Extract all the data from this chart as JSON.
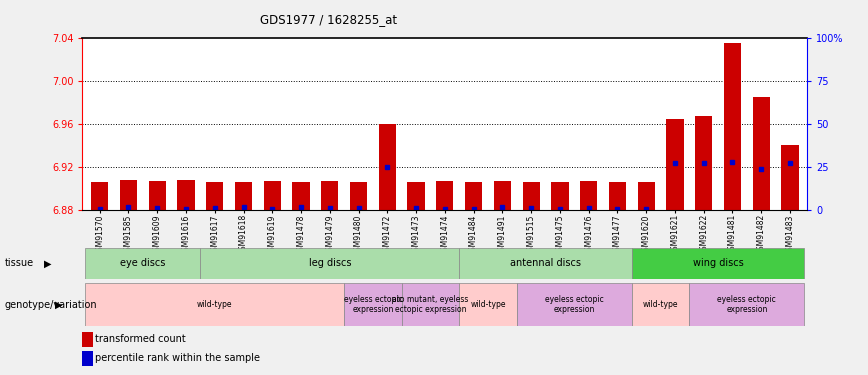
{
  "title": "GDS1977 / 1628255_at",
  "samples": [
    "GSM91570",
    "GSM91585",
    "GSM91609",
    "GSM91616",
    "GSM91617",
    "GSM91618",
    "GSM91619",
    "GSM91478",
    "GSM91479",
    "GSM91480",
    "GSM91472",
    "GSM91473",
    "GSM91474",
    "GSM91484",
    "GSM91491",
    "GSM91515",
    "GSM91475",
    "GSM91476",
    "GSM91477",
    "GSM91620",
    "GSM91621",
    "GSM91622",
    "GSM91481",
    "GSM91482",
    "GSM91483"
  ],
  "red_values": [
    6.906,
    6.908,
    6.907,
    6.908,
    6.906,
    6.906,
    6.907,
    6.906,
    6.907,
    6.906,
    6.96,
    6.906,
    6.907,
    6.906,
    6.907,
    6.906,
    6.906,
    6.907,
    6.906,
    6.906,
    6.964,
    6.967,
    7.035,
    6.985,
    6.94
  ],
  "blue_values": [
    0.5,
    1.5,
    1.0,
    0.5,
    1.0,
    1.5,
    0.5,
    1.5,
    1.0,
    1.0,
    25.0,
    1.0,
    0.5,
    0.5,
    1.5,
    1.0,
    0.5,
    1.0,
    0.5,
    0.5,
    27.0,
    27.0,
    28.0,
    24.0,
    27.0
  ],
  "ymin": 6.88,
  "ymax": 7.04,
  "yticks": [
    6.88,
    6.92,
    6.96,
    7.0,
    7.04
  ],
  "right_yticks": [
    0,
    25,
    50,
    75,
    100
  ],
  "right_yticklabels": [
    "0",
    "25",
    "50",
    "75",
    "100%"
  ],
  "tissue_boundaries": [
    {
      "label": "eye discs",
      "start": 0,
      "end": 4,
      "color": "#aaddaa"
    },
    {
      "label": "leg discs",
      "start": 4,
      "end": 13,
      "color": "#aaddaa"
    },
    {
      "label": "antennal discs",
      "start": 13,
      "end": 19,
      "color": "#aaddaa"
    },
    {
      "label": "wing discs",
      "start": 19,
      "end": 25,
      "color": "#44cc44"
    }
  ],
  "geno_groups": [
    {
      "label": "wild-type",
      "start": 0,
      "end": 9,
      "color": "#ffcccc"
    },
    {
      "label": "eyeless ectopic\nexpression",
      "start": 9,
      "end": 11,
      "color": "#ddaadd"
    },
    {
      "label": "ato mutant, eyeless\nectopic expression",
      "start": 11,
      "end": 13,
      "color": "#ddaadd"
    },
    {
      "label": "wild-type",
      "start": 13,
      "end": 15,
      "color": "#ffcccc"
    },
    {
      "label": "eyeless ectopic\nexpression",
      "start": 15,
      "end": 19,
      "color": "#ddaadd"
    },
    {
      "label": "wild-type",
      "start": 19,
      "end": 21,
      "color": "#ffcccc"
    },
    {
      "label": "eyeless ectopic\nexpression",
      "start": 21,
      "end": 25,
      "color": "#ddaadd"
    }
  ],
  "bar_color": "#CC0000",
  "blue_color": "#0000CC",
  "bg_color": "#ffffff",
  "fig_bg": "#f0f0f0"
}
